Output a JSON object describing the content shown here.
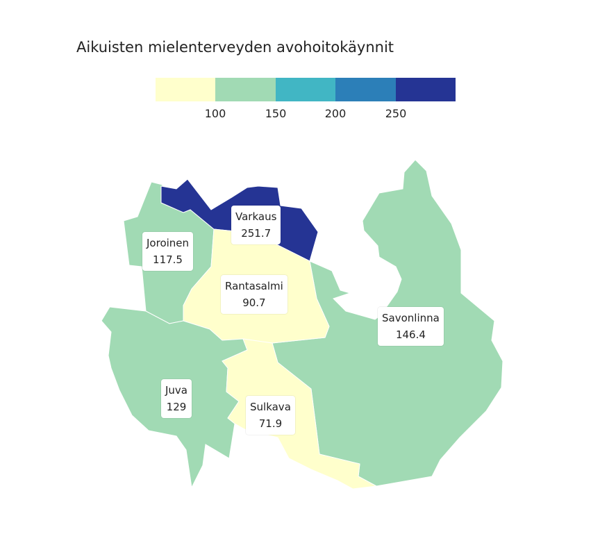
{
  "title": "Aikuisten mielenterveyden avohoitokäynnit",
  "legend": {
    "colors": [
      "#ffffcc",
      "#a1dab4",
      "#41b6c4",
      "#2c7fb8",
      "#253494"
    ],
    "ticks": [
      "100",
      "150",
      "200",
      "250"
    ]
  },
  "regions": [
    {
      "name": "Varkaus",
      "value": "251.7",
      "color": "#253494"
    },
    {
      "name": "Joroinen",
      "value": "117.5",
      "color": "#a1dab4"
    },
    {
      "name": "Rantasalmi",
      "value": "90.7",
      "color": "#ffffcc"
    },
    {
      "name": "Savonlinna",
      "value": "146.4",
      "color": "#a1dab4"
    },
    {
      "name": "Juva",
      "value": "129",
      "color": "#a1dab4"
    },
    {
      "name": "Sulkava",
      "value": "71.9",
      "color": "#ffffcc"
    }
  ]
}
